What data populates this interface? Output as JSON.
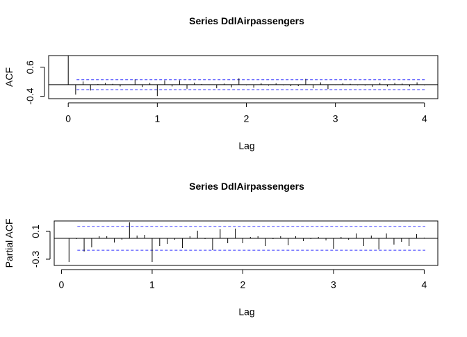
{
  "chart_data": [
    {
      "type": "stem",
      "title": "Series  DdlAirpassengers",
      "x_label": "Lag",
      "y_label": "ACF",
      "color": "#000000",
      "x": [
        0,
        0.0833,
        0.1667,
        0.25,
        0.3333,
        0.4167,
        0.5,
        0.5833,
        0.6667,
        0.75,
        0.8333,
        0.9167,
        1,
        1.0833,
        1.1667,
        1.25,
        1.3333,
        1.4167,
        1.5,
        1.5833,
        1.6667,
        1.75,
        1.8333,
        1.9167,
        2,
        2.0833,
        2.1667,
        2.25,
        2.3333,
        2.4167,
        2.5,
        2.5833,
        2.6667,
        2.75,
        2.8333,
        2.9167,
        3,
        3.0833,
        3.1667,
        3.25,
        3.3333,
        3.4167,
        3.5,
        3.5833,
        3.6667,
        3.75,
        3.8333,
        3.9167,
        4
      ],
      "values": [
        1,
        -0.34,
        0.11,
        -0.2,
        0.02,
        0.06,
        0.03,
        -0.06,
        0,
        0.18,
        -0.08,
        0.06,
        -0.39,
        0.15,
        -0.06,
        0.15,
        -0.14,
        0.07,
        0.02,
        -0.01,
        -0.12,
        0.04,
        -0.09,
        0.22,
        -0.02,
        -0.1,
        0.05,
        -0.03,
        0.05,
        -0.02,
        -0.05,
        -0.05,
        0.2,
        -0.12,
        0.08,
        -0.15,
        -0.01,
        0.05,
        0.03,
        -0.02,
        -0.03,
        -0.07,
        0.06,
        -0.06,
        0.06,
        0.04,
        -0.06,
        0.08,
        -0.02
      ],
      "confidence_bounds": [
        0.171,
        -0.171
      ],
      "bound_color": "#3333ff",
      "xlim": [
        -0.22,
        4.15
      ],
      "xticks": [
        0,
        1,
        2,
        3,
        4
      ],
      "ylim": [
        -0.48,
        1.0
      ],
      "yticks": [
        -0.4,
        0.6
      ]
    },
    {
      "type": "stem",
      "title": "Series  DdlAirpassengers",
      "x_label": "Lag",
      "y_label": "Partial ACF",
      "color": "#000000",
      "x": [
        0.0833,
        0.1667,
        0.25,
        0.3333,
        0.4167,
        0.5,
        0.5833,
        0.6667,
        0.75,
        0.8333,
        0.9167,
        1,
        1.0833,
        1.1667,
        1.25,
        1.3333,
        1.4167,
        1.5,
        1.5833,
        1.6667,
        1.75,
        1.8333,
        1.9167,
        2,
        2.0833,
        2.1667,
        2.25,
        2.3333,
        2.4167,
        2.5,
        2.5833,
        2.6667,
        2.75,
        2.8333,
        2.9167,
        3,
        3.0833,
        3.1667,
        3.25,
        3.3333,
        3.4167,
        3.5,
        3.5833,
        3.6667,
        3.75,
        3.8333,
        3.9167,
        4
      ],
      "values": [
        -0.34,
        -0.01,
        -0.19,
        -0.13,
        0.03,
        0.03,
        -0.06,
        -0.02,
        0.23,
        0.04,
        0.05,
        -0.34,
        -0.11,
        -0.08,
        -0.02,
        -0.14,
        0.03,
        0.11,
        -0.01,
        -0.17,
        0.13,
        -0.07,
        0.14,
        -0.07,
        0.02,
        0.03,
        -0.11,
        -0.01,
        0.03,
        -0.1,
        0.03,
        -0.04,
        -0.01,
        0.02,
        -0.03,
        -0.15,
        0.02,
        -0.02,
        0.07,
        -0.11,
        0.04,
        -0.16,
        0.07,
        -0.09,
        -0.05,
        -0.11,
        0.06,
        0.01
      ],
      "confidence_bounds": [
        0.171,
        -0.171
      ],
      "bound_color": "#3333ff",
      "xlim": [
        -0.08,
        4.15
      ],
      "xticks": [
        0,
        1,
        2,
        3,
        4
      ],
      "ylim": [
        -0.39,
        0.25
      ],
      "yticks": [
        -0.3,
        0.1
      ]
    }
  ]
}
